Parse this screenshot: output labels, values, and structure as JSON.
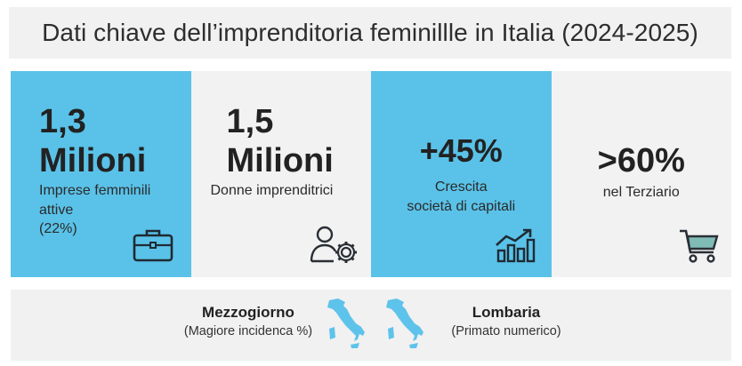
{
  "title": "Dati chiave dell’imprenditoria feminillle in Italia (2024-2025)",
  "colors": {
    "accent_blue": "#5ac2e8",
    "panel_grey": "#f2f2f2",
    "map_blue": "#5ec3ea",
    "cart_teal": "#6fa8a3"
  },
  "cards": [
    {
      "value_line1": "1,3",
      "value_line2": "Milioni",
      "label_lines": [
        "Imprese femminili",
        "attive",
        "(22%)"
      ],
      "icon": "briefcase-icon"
    },
    {
      "value_line1": "1,5",
      "value_line2": "Milioni",
      "label_lines": [
        "Donne imprenditrici"
      ],
      "icon": "person-gear-icon"
    },
    {
      "value_line1": "+45%",
      "label_lines": [
        "Crescita",
        "società di capitali"
      ],
      "icon": "growth-chart-icon"
    },
    {
      "value_line1": ">60%",
      "label_lines": [
        "nel Terziario"
      ],
      "icon": "shopping-cart-icon"
    }
  ],
  "regions": [
    {
      "name": "Mezzogiorno",
      "note": "(Magiore incidenca %)",
      "icon": "italy-map-icon"
    },
    {
      "name": "Lombaria",
      "note": "(Primato numerico)",
      "icon": "italy-map-icon"
    }
  ]
}
